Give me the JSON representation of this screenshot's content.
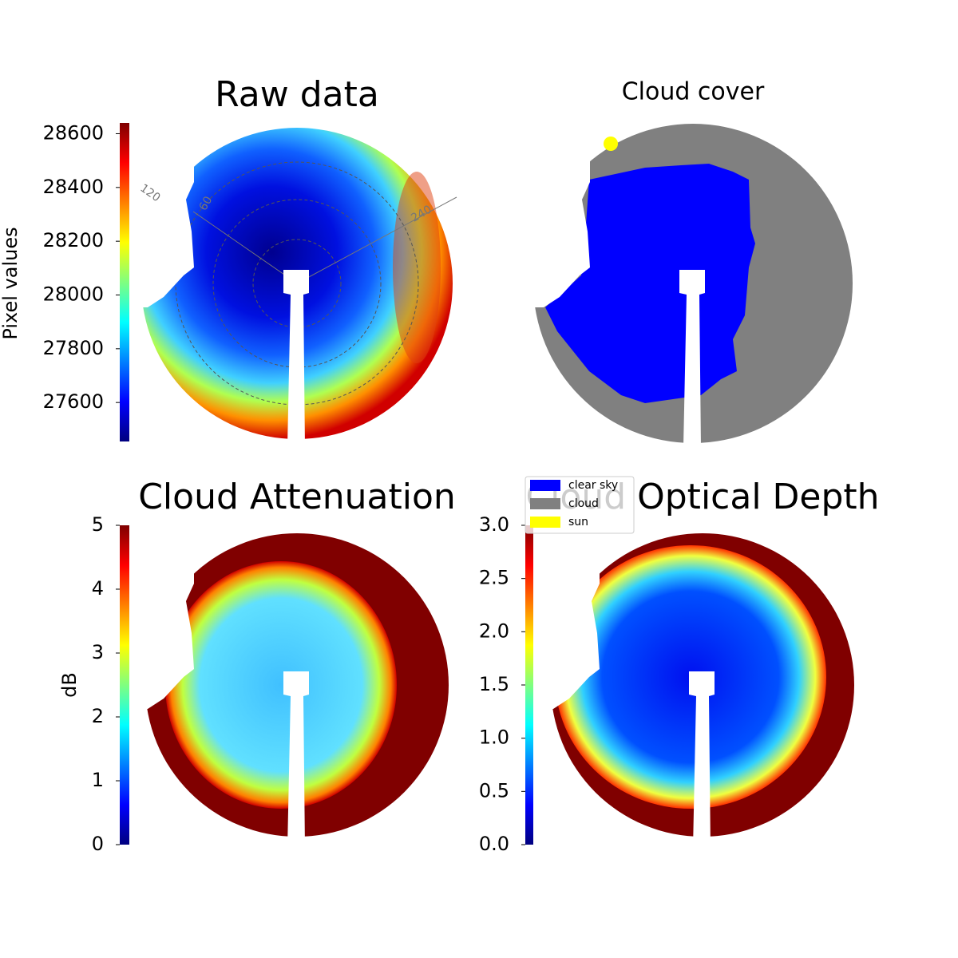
{
  "chart_data": [
    {
      "type": "heatmap",
      "title": "Raw data",
      "ylabel": "Pixel values",
      "colormap": "jet",
      "ylim": [
        27455,
        28640
      ],
      "yticks": [
        27600,
        27800,
        28000,
        28200,
        28400,
        28600
      ],
      "annotations": [
        "120",
        "60",
        "240"
      ]
    },
    {
      "type": "classified-image",
      "title": "Cloud cover",
      "series": [
        {
          "name": "clear sky",
          "color": "#0000ff"
        },
        {
          "name": "cloud",
          "color": "#808080"
        },
        {
          "name": "sun",
          "color": "#ffff00"
        }
      ]
    },
    {
      "type": "heatmap",
      "title": "Cloud Attenuation",
      "ylabel": "dB",
      "colormap": "jet",
      "ylim": [
        0,
        5
      ],
      "yticks": [
        0,
        1,
        2,
        3,
        4,
        5
      ]
    },
    {
      "type": "heatmap",
      "title": "Cloud Optical Depth",
      "colormap": "jet",
      "ylim": [
        0,
        3
      ],
      "yticks": [
        {
          "value": 0,
          "label": "0.0"
        },
        0.5,
        {
          "value": 1,
          "label": "1.0"
        },
        1.5,
        {
          "value": 2,
          "label": "2.0"
        },
        2.5,
        {
          "value": 3,
          "label": "3.0"
        }
      ]
    }
  ]
}
